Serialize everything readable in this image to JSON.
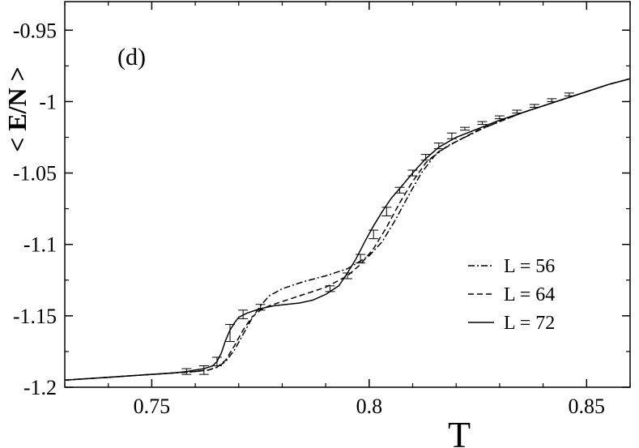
{
  "chart_data": {
    "type": "line",
    "title": "",
    "panel_label": "(d)",
    "xlabel": "T",
    "ylabel": "< E/N >",
    "xlim": [
      0.73,
      0.86
    ],
    "ylim": [
      -1.2,
      -0.93
    ],
    "xticks": [
      0.75,
      0.8,
      0.85
    ],
    "xtick_labels": [
      "0.75",
      "0.8",
      "0.85"
    ],
    "yticks": [
      -1.2,
      -1.15,
      -1.1,
      -1.05,
      -1.0,
      -0.95
    ],
    "ytick_labels": [
      "-1.2",
      "-1.15",
      "-1.1",
      "-1.05",
      "-1",
      "-0.95"
    ],
    "grid": false,
    "legend_position": "right",
    "series": [
      {
        "name": "L = 56",
        "style": "dashdot",
        "x": [
          0.73,
          0.74,
          0.75,
          0.755,
          0.76,
          0.763,
          0.765,
          0.767,
          0.769,
          0.771,
          0.773,
          0.775,
          0.777,
          0.78,
          0.785,
          0.79,
          0.795,
          0.8,
          0.803,
          0.806,
          0.809,
          0.812,
          0.815,
          0.818,
          0.822,
          0.826,
          0.83,
          0.835,
          0.84,
          0.845,
          0.85,
          0.855,
          0.86
        ],
        "y": [
          -1.195,
          -1.193,
          -1.191,
          -1.19,
          -1.189,
          -1.188,
          -1.186,
          -1.182,
          -1.174,
          -1.163,
          -1.152,
          -1.143,
          -1.136,
          -1.131,
          -1.126,
          -1.122,
          -1.117,
          -1.108,
          -1.098,
          -1.083,
          -1.066,
          -1.05,
          -1.038,
          -1.031,
          -1.025,
          -1.019,
          -1.014,
          -1.008,
          -1.003,
          -0.998,
          -0.993,
          -0.988,
          -0.984
        ]
      },
      {
        "name": "L = 64",
        "style": "dashed",
        "x": [
          0.73,
          0.74,
          0.75,
          0.755,
          0.76,
          0.763,
          0.765,
          0.767,
          0.769,
          0.771,
          0.773,
          0.775,
          0.777,
          0.78,
          0.785,
          0.79,
          0.795,
          0.798,
          0.801,
          0.804,
          0.807,
          0.81,
          0.813,
          0.816,
          0.82,
          0.825,
          0.83,
          0.835,
          0.84,
          0.845,
          0.85,
          0.855,
          0.86
        ],
        "y": [
          -1.195,
          -1.193,
          -1.191,
          -1.19,
          -1.189,
          -1.188,
          -1.186,
          -1.181,
          -1.171,
          -1.16,
          -1.151,
          -1.146,
          -1.143,
          -1.14,
          -1.135,
          -1.13,
          -1.122,
          -1.114,
          -1.103,
          -1.088,
          -1.071,
          -1.056,
          -1.043,
          -1.035,
          -1.028,
          -1.02,
          -1.014,
          -1.008,
          -1.003,
          -0.998,
          -0.993,
          -0.988,
          -0.984
        ]
      },
      {
        "name": "L = 72",
        "style": "solid",
        "x": [
          0.73,
          0.74,
          0.75,
          0.755,
          0.758,
          0.76,
          0.762,
          0.764,
          0.765,
          0.766,
          0.767,
          0.768,
          0.769,
          0.77,
          0.772,
          0.775,
          0.778,
          0.781,
          0.784,
          0.787,
          0.79,
          0.793,
          0.795,
          0.797,
          0.799,
          0.801,
          0.803,
          0.805,
          0.807,
          0.81,
          0.813,
          0.816,
          0.82,
          0.825,
          0.83,
          0.835,
          0.84,
          0.845,
          0.85,
          0.855,
          0.86
        ],
        "y": [
          -1.195,
          -1.193,
          -1.191,
          -1.19,
          -1.189,
          -1.188,
          -1.187,
          -1.185,
          -1.182,
          -1.176,
          -1.167,
          -1.16,
          -1.155,
          -1.151,
          -1.148,
          -1.145,
          -1.143,
          -1.142,
          -1.141,
          -1.139,
          -1.135,
          -1.129,
          -1.12,
          -1.11,
          -1.098,
          -1.087,
          -1.077,
          -1.068,
          -1.061,
          -1.05,
          -1.04,
          -1.032,
          -1.025,
          -1.019,
          -1.013,
          -1.008,
          -1.003,
          -0.998,
          -0.993,
          -0.988,
          -0.984
        ]
      }
    ],
    "error_bar_points": {
      "x": [
        0.758,
        0.762,
        0.765,
        0.768,
        0.771,
        0.775,
        0.791,
        0.795,
        0.798,
        0.801,
        0.804,
        0.807,
        0.81,
        0.813,
        0.816,
        0.819,
        0.822,
        0.826,
        0.83,
        0.834,
        0.838,
        0.842,
        0.846
      ],
      "y": [
        -1.189,
        -1.188,
        -1.182,
        -1.162,
        -1.149,
        -1.144,
        -1.131,
        -1.122,
        -1.11,
        -1.093,
        -1.077,
        -1.062,
        -1.05,
        -1.039,
        -1.031,
        -1.024,
        -1.019,
        -1.015,
        -1.011,
        -1.007,
        -1.003,
        -0.999,
        -0.995
      ],
      "err": [
        0.002,
        0.003,
        0.003,
        0.006,
        0.003,
        0.002,
        0.002,
        0.002,
        0.003,
        0.003,
        0.003,
        0.002,
        0.002,
        0.002,
        0.002,
        0.002,
        0.001,
        0.001,
        0.001,
        0.001,
        0.001,
        0.001,
        0.001
      ]
    }
  }
}
